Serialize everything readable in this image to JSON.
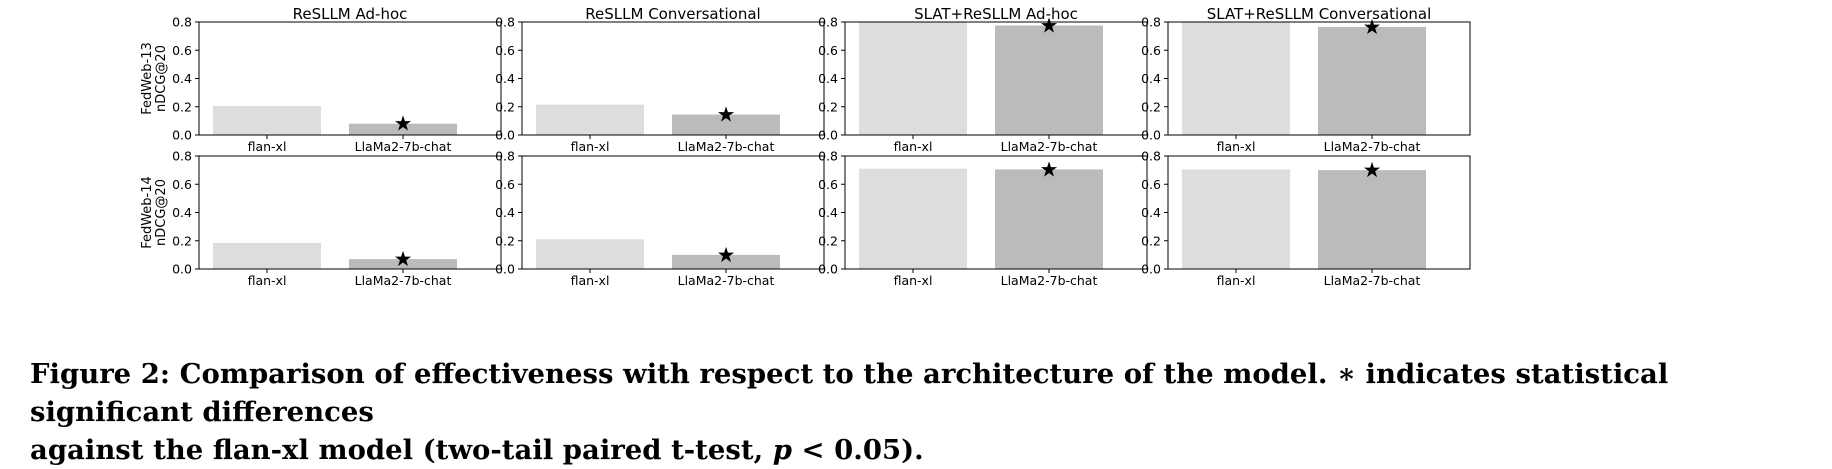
{
  "caption": {
    "line1": "Figure 2: Comparison of effectiveness with respect to the architecture of the model. ∗ indicates statistical significant differences",
    "line2_prefix": "against the flan-xl model (two-tail paired t-test, ",
    "p_symbol": "p",
    "line2_suffix": " < 0.05)."
  },
  "significance_marker": "★",
  "chart_data": {
    "type": "bar",
    "columns": [
      "ReSLLM Ad-hoc",
      "ReSLLM Conversational",
      "SLAT+ReSLLM Ad-hoc",
      "SLAT+ReSLLM Conversational"
    ],
    "rows": [
      {
        "label_line1": "FedWeb-13",
        "label_line2": "nDCG@20"
      },
      {
        "label_line1": "FedWeb-14",
        "label_line2": "nDCG@20"
      }
    ],
    "categories": [
      "flan-xl",
      "LlaMa2-7b-chat"
    ],
    "ylim": [
      0,
      0.8
    ],
    "yticks": [
      "0.0",
      "0.2",
      "0.4",
      "0.6",
      "0.8"
    ],
    "colors": {
      "flan-xl": "#dddddd",
      "LlaMa2-7b-chat": "#bbbbbb"
    },
    "panels": [
      {
        "row": 0,
        "col": 0,
        "title": "ReSLLM Ad-hoc",
        "values": [
          0.205,
          0.08
        ],
        "significant": [
          false,
          true
        ]
      },
      {
        "row": 0,
        "col": 1,
        "title": "ReSLLM Conversational",
        "values": [
          0.215,
          0.145
        ],
        "significant": [
          false,
          true
        ]
      },
      {
        "row": 0,
        "col": 2,
        "title": "SLAT+ReSLLM Ad-hoc",
        "values": [
          0.8,
          0.775
        ],
        "significant": [
          false,
          true
        ]
      },
      {
        "row": 0,
        "col": 3,
        "title": "SLAT+ReSLLM Conversational",
        "values": [
          0.8,
          0.765
        ],
        "significant": [
          false,
          true
        ]
      },
      {
        "row": 1,
        "col": 0,
        "title": "",
        "values": [
          0.185,
          0.07
        ],
        "significant": [
          false,
          true
        ]
      },
      {
        "row": 1,
        "col": 1,
        "title": "",
        "values": [
          0.21,
          0.1
        ],
        "significant": [
          false,
          true
        ]
      },
      {
        "row": 1,
        "col": 2,
        "title": "",
        "values": [
          0.71,
          0.705
        ],
        "significant": [
          false,
          true
        ]
      },
      {
        "row": 1,
        "col": 3,
        "title": "",
        "values": [
          0.705,
          0.7
        ],
        "significant": [
          false,
          true
        ]
      }
    ]
  }
}
